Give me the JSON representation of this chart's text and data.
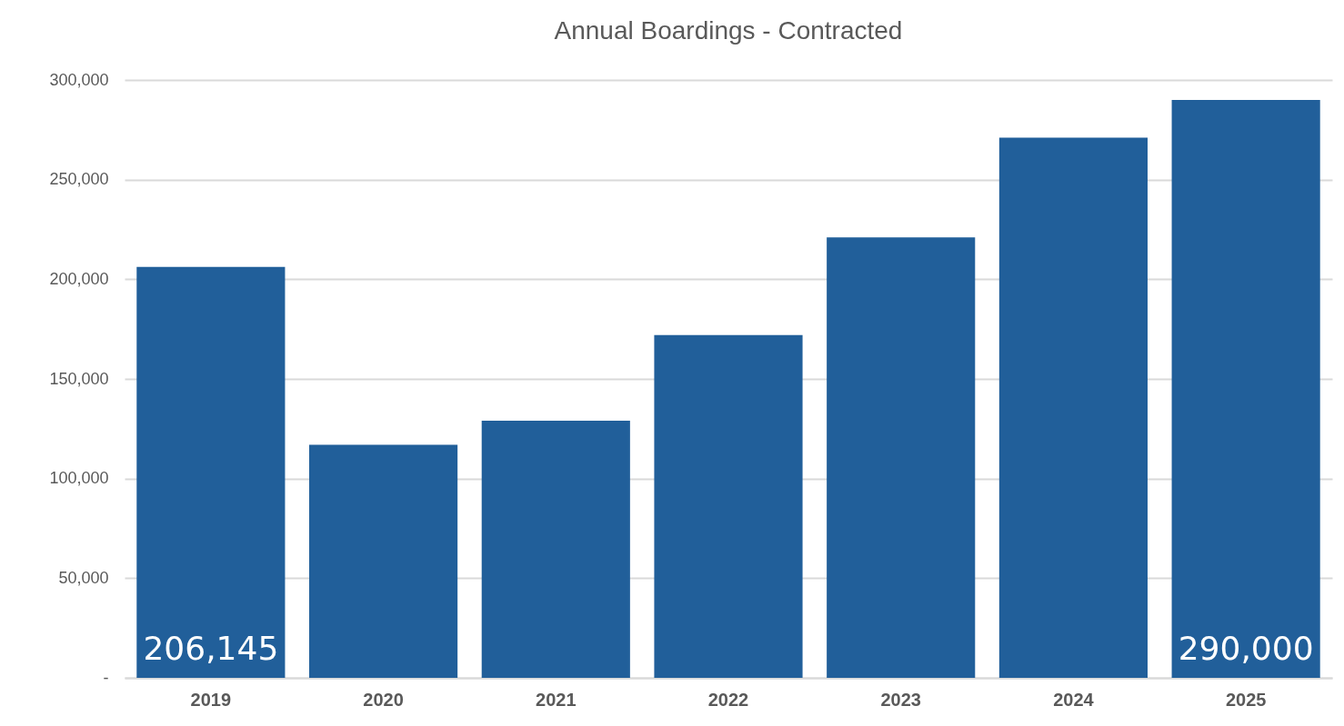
{
  "chart_data": {
    "type": "bar",
    "title": "Annual Boardings - Contracted",
    "categories": [
      "2019",
      "2020",
      "2021",
      "2022",
      "2023",
      "2024",
      "2025"
    ],
    "values": [
      206145,
      117000,
      129000,
      172000,
      221000,
      271000,
      290000
    ],
    "value_labels": [
      "206,145",
      null,
      null,
      null,
      null,
      null,
      "290,000"
    ],
    "color": "#215f9a",
    "ylim": [
      0,
      300000
    ],
    "yticks": [
      {
        "value": 0,
        "label": "-"
      },
      {
        "value": 50000,
        "label": "50,000"
      },
      {
        "value": 100000,
        "label": "100,000"
      },
      {
        "value": 150000,
        "label": "150,000"
      },
      {
        "value": 200000,
        "label": "200,000"
      },
      {
        "value": 250000,
        "label": "250,000"
      },
      {
        "value": 300000,
        "label": "300,000"
      }
    ],
    "grid": "y"
  }
}
